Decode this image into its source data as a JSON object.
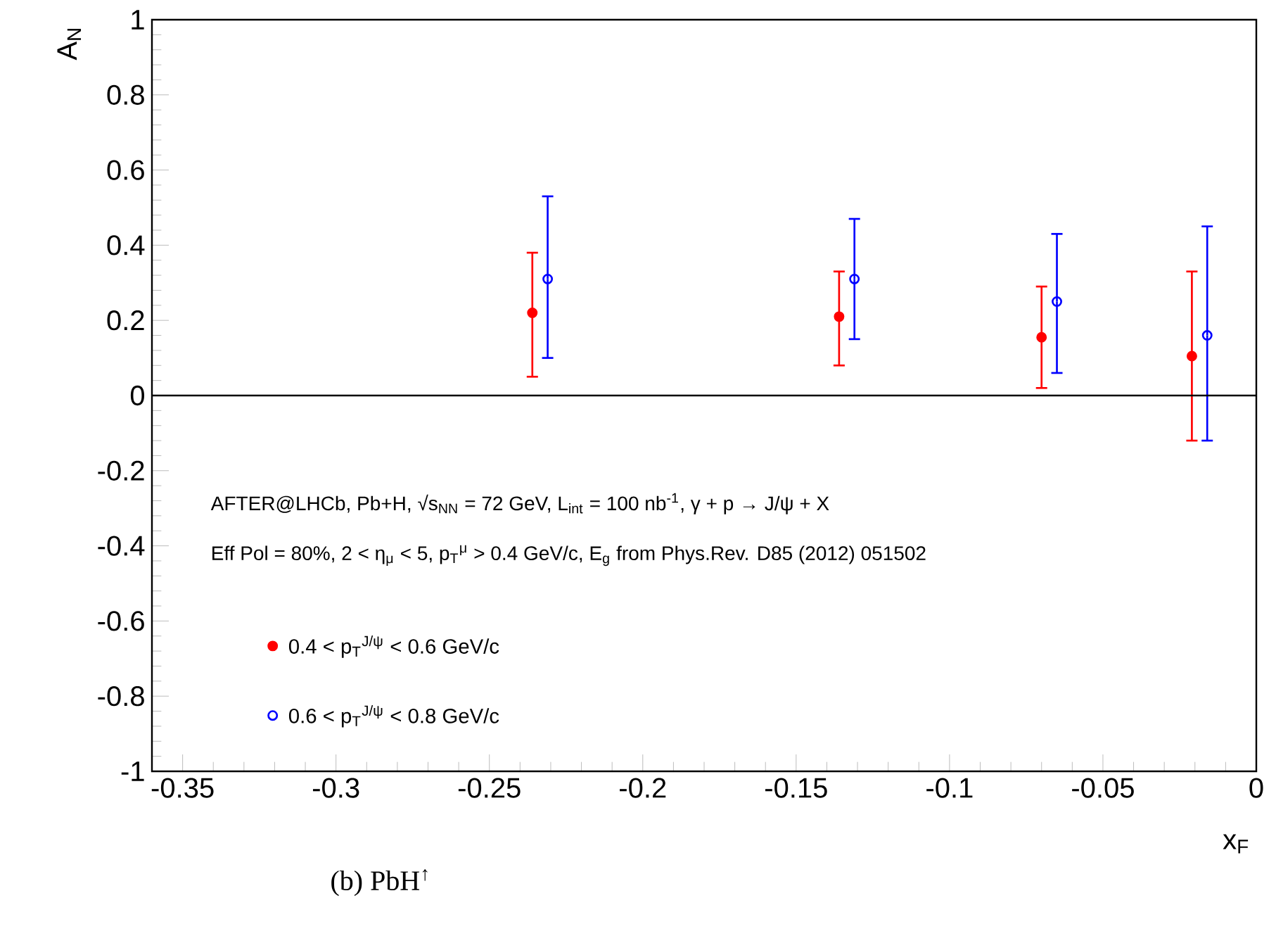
{
  "chart_data": {
    "type": "scatter",
    "xlabel": "x$_{F}$",
    "ylabel": "A$_{N}$",
    "xlim": [
      -0.36,
      0
    ],
    "ylim": [
      -1,
      1
    ],
    "xticks": [
      -0.35,
      -0.3,
      -0.25,
      -0.2,
      -0.15,
      -0.1,
      -0.05,
      0
    ],
    "yticks": [
      -1,
      -0.8,
      -0.6,
      -0.4,
      -0.2,
      0,
      0.2,
      0.4,
      0.6,
      0.8,
      1
    ],
    "marker": "circle",
    "grid": false,
    "legend": "bottom left",
    "ref_lines": [
      {
        "axis": "y",
        "value": 0,
        "color": "#000000"
      }
    ],
    "annotations": [
      "AFTER@LHCb, Pb+H, √s$_{NN}$ = 72 GeV, L$_{int}$ = 100 nb$^{-1}$, γ + p → J/ψ + X",
      "Eff Pol = 80%, 2 < η$_{μ}$ < 5, p$_{T}$$^{μ}$ > 0.4 GeV/c, E$_{g}$ from Phys.Rev. D85 (2012) 051502",
      "(b) PbH$^{↑}$"
    ],
    "series": [
      {
        "name": "0.4 < p$_{T}$$^{J/ψ}$ < 0.6 GeV/c",
        "color": "#ff0000",
        "x": [
          -0.236,
          -0.136,
          -0.07,
          -0.021
        ],
        "values": [
          0.22,
          0.21,
          0.155,
          0.105
        ],
        "errors": [
          [
            0.05,
            0.38
          ],
          [
            0.08,
            0.33
          ],
          [
            0.02,
            0.29
          ],
          [
            -0.12,
            0.33
          ]
        ]
      },
      {
        "name": "0.6 < p$_{T}$$^{J/ψ}$ < 0.8 GeV/c",
        "color": "#0000ff",
        "x": [
          -0.231,
          -0.131,
          -0.065,
          -0.016
        ],
        "values": [
          0.31,
          0.31,
          0.25,
          0.16
        ],
        "errors": [
          [
            0.1,
            0.53
          ],
          [
            0.15,
            0.47
          ],
          [
            0.06,
            0.43
          ],
          [
            -0.12,
            0.45
          ]
        ]
      }
    ]
  }
}
